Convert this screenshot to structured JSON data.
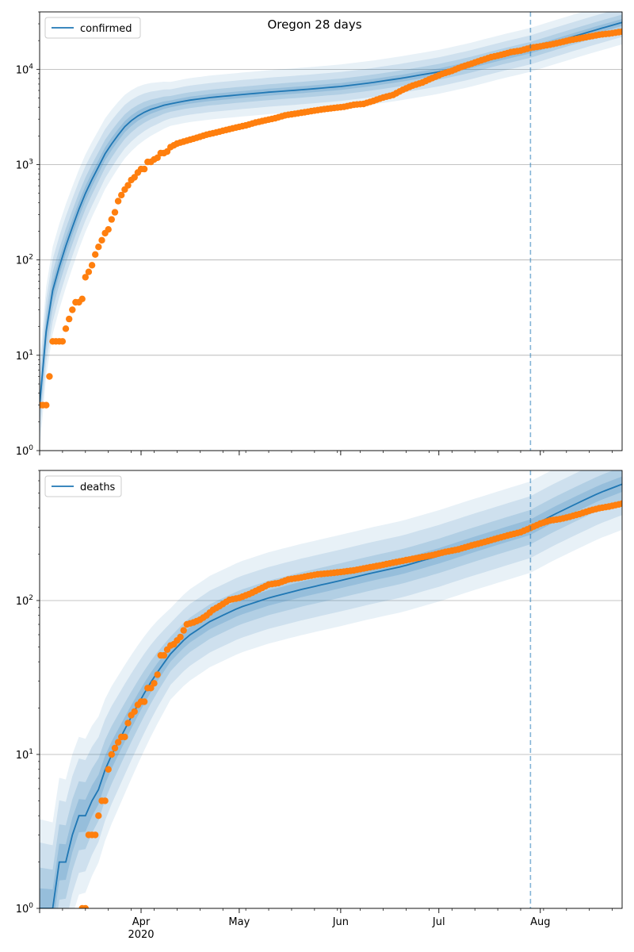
{
  "title": "Oregon 28 days",
  "colors": {
    "model": "#1f77b4",
    "observed": "#ff7f0e",
    "band": "#1f77b4",
    "grid": "#b0b0b0"
  },
  "x_axis": {
    "range": [
      "2020-03-01",
      "2020-08-26"
    ],
    "month_ticks": [
      {
        "date": "2020-04-01",
        "label": "Apr",
        "sublabel": "2020"
      },
      {
        "date": "2020-05-01",
        "label": "May",
        "sublabel": ""
      },
      {
        "date": "2020-06-01",
        "label": "Jun",
        "sublabel": ""
      },
      {
        "date": "2020-07-01",
        "label": "Jul",
        "sublabel": ""
      },
      {
        "date": "2020-08-01",
        "label": "Aug",
        "sublabel": ""
      }
    ],
    "forecast_start": "2020-07-29"
  },
  "chart_data": [
    {
      "type": "line",
      "title": "Oregon 28 days",
      "scale": "log",
      "legend": {
        "label": "confirmed",
        "placement": "top-left"
      },
      "ylim": [
        1,
        40000
      ],
      "y_ticks": [
        {
          "value": 1,
          "base": "10",
          "exp": "0"
        },
        {
          "value": 10,
          "base": "10",
          "exp": "1"
        },
        {
          "value": 100,
          "base": "10",
          "exp": "2"
        },
        {
          "value": 1000,
          "base": "10",
          "exp": "3"
        },
        {
          "value": 10000,
          "base": "10",
          "exp": "4"
        }
      ],
      "grid": true,
      "model": [
        [
          "2020-03-01",
          3
        ],
        [
          "2020-03-02",
          8
        ],
        [
          "2020-03-03",
          18
        ],
        [
          "2020-03-04",
          32
        ],
        [
          "2020-03-05",
          48
        ],
        [
          "2020-03-07",
          85
        ],
        [
          "2020-03-09",
          140
        ],
        [
          "2020-03-11",
          220
        ],
        [
          "2020-03-13",
          340
        ],
        [
          "2020-03-15",
          500
        ],
        [
          "2020-03-17",
          700
        ],
        [
          "2020-03-19",
          950
        ],
        [
          "2020-03-21",
          1300
        ],
        [
          "2020-03-24",
          1850
        ],
        [
          "2020-03-27",
          2500
        ],
        [
          "2020-03-30",
          3100
        ],
        [
          "2020-04-03",
          3700
        ],
        [
          "2020-04-08",
          4200
        ],
        [
          "2020-04-15",
          4700
        ],
        [
          "2020-04-22",
          5050
        ],
        [
          "2020-05-01",
          5400
        ],
        [
          "2020-05-10",
          5750
        ],
        [
          "2020-05-20",
          6100
        ],
        [
          "2020-06-01",
          6600
        ],
        [
          "2020-06-10",
          7200
        ],
        [
          "2020-06-20",
          8100
        ],
        [
          "2020-07-01",
          9400
        ],
        [
          "2020-07-10",
          11000
        ],
        [
          "2020-07-20",
          13500
        ],
        [
          "2020-07-29",
          16000
        ],
        [
          "2020-08-05",
          19000
        ],
        [
          "2020-08-12",
          22500
        ],
        [
          "2020-08-19",
          26500
        ],
        [
          "2020-08-26",
          31000
        ]
      ],
      "observed": [
        [
          "2020-03-01",
          3
        ],
        [
          "2020-03-02",
          3
        ],
        [
          "2020-03-03",
          3
        ],
        [
          "2020-03-04",
          6
        ],
        [
          "2020-03-05",
          14
        ],
        [
          "2020-03-06",
          14
        ],
        [
          "2020-03-07",
          14
        ],
        [
          "2020-03-08",
          14
        ],
        [
          "2020-03-09",
          19
        ],
        [
          "2020-03-10",
          24
        ],
        [
          "2020-03-11",
          30
        ],
        [
          "2020-03-12",
          36
        ],
        [
          "2020-03-13",
          36
        ],
        [
          "2020-03-14",
          39
        ],
        [
          "2020-03-15",
          66
        ],
        [
          "2020-03-16",
          75
        ],
        [
          "2020-03-17",
          88
        ],
        [
          "2020-03-18",
          114
        ],
        [
          "2020-03-19",
          137
        ],
        [
          "2020-03-20",
          161
        ],
        [
          "2020-03-21",
          191
        ],
        [
          "2020-03-22",
          209
        ],
        [
          "2020-03-23",
          266
        ],
        [
          "2020-03-24",
          316
        ],
        [
          "2020-03-25",
          414
        ],
        [
          "2020-03-26",
          479
        ],
        [
          "2020-03-27",
          548
        ],
        [
          "2020-03-28",
          606
        ],
        [
          "2020-03-29",
          690
        ],
        [
          "2020-03-30",
          736
        ],
        [
          "2020-03-31",
          826
        ],
        [
          "2020-04-01",
          899
        ],
        [
          "2020-04-02",
          899
        ],
        [
          "2020-04-03",
          1068
        ],
        [
          "2020-04-04",
          1068
        ],
        [
          "2020-04-05",
          1132
        ],
        [
          "2020-04-06",
          1181
        ],
        [
          "2020-04-07",
          1321
        ],
        [
          "2020-04-08",
          1321
        ],
        [
          "2020-04-09",
          1371
        ],
        [
          "2020-04-10",
          1527
        ],
        [
          "2020-04-12",
          1663
        ],
        [
          "2020-04-15",
          1785
        ],
        [
          "2020-04-18",
          1910
        ],
        [
          "2020-04-21",
          2059
        ],
        [
          "2020-04-24",
          2177
        ],
        [
          "2020-04-27",
          2311
        ],
        [
          "2020-04-30",
          2446
        ],
        [
          "2020-05-03",
          2579
        ],
        [
          "2020-05-06",
          2759
        ],
        [
          "2020-05-09",
          2916
        ],
        [
          "2020-05-12",
          3068
        ],
        [
          "2020-05-15",
          3286
        ],
        [
          "2020-05-18",
          3416
        ],
        [
          "2020-05-21",
          3541
        ],
        [
          "2020-05-24",
          3687
        ],
        [
          "2020-05-27",
          3817
        ],
        [
          "2020-05-30",
          3927
        ],
        [
          "2020-06-02",
          4038
        ],
        [
          "2020-06-05",
          4243
        ],
        [
          "2020-06-08",
          4335
        ],
        [
          "2020-06-11",
          4662
        ],
        [
          "2020-06-14",
          5063
        ],
        [
          "2020-06-17",
          5377
        ],
        [
          "2020-06-20",
          6098
        ],
        [
          "2020-06-23",
          6750
        ],
        [
          "2020-06-26",
          7274
        ],
        [
          "2020-06-29",
          8094
        ],
        [
          "2020-07-02",
          8931
        ],
        [
          "2020-07-05",
          9636
        ],
        [
          "2020-07-08",
          10605
        ],
        [
          "2020-07-11",
          11454
        ],
        [
          "2020-07-14",
          12438
        ],
        [
          "2020-07-17",
          13410
        ],
        [
          "2020-07-20",
          14149
        ],
        [
          "2020-07-23",
          15139
        ],
        [
          "2020-07-26",
          15713
        ],
        [
          "2020-07-29",
          16758
        ],
        [
          "2020-08-01",
          17416
        ],
        [
          "2020-08-04",
          18131
        ],
        [
          "2020-08-07",
          19097
        ],
        [
          "2020-08-10",
          20225
        ],
        [
          "2020-08-13",
          21055
        ],
        [
          "2020-08-16",
          22022
        ],
        [
          "2020-08-19",
          23030
        ],
        [
          "2020-08-22",
          23676
        ],
        [
          "2020-08-26",
          24802
        ]
      ]
    },
    {
      "type": "line",
      "scale": "log",
      "legend": {
        "label": "deaths",
        "placement": "top-left"
      },
      "ylim": [
        1,
        700
      ],
      "y_ticks": [
        {
          "value": 1,
          "base": "10",
          "exp": "0"
        },
        {
          "value": 10,
          "base": "10",
          "exp": "1"
        },
        {
          "value": 100,
          "base": "10",
          "exp": "2"
        }
      ],
      "grid": true,
      "model": [
        [
          "2020-03-01",
          1
        ],
        [
          "2020-03-05",
          1
        ],
        [
          "2020-03-06",
          2
        ],
        [
          "2020-03-09",
          2
        ],
        [
          "2020-03-10",
          3
        ],
        [
          "2020-03-12",
          3
        ],
        [
          "2020-03-13",
          4
        ],
        [
          "2020-03-15",
          4
        ],
        [
          "2020-03-16",
          5
        ],
        [
          "2020-03-18",
          5
        ],
        [
          "2020-03-20",
          7
        ],
        [
          "2020-03-22",
          9
        ],
        [
          "2020-03-25",
          12
        ],
        [
          "2020-03-28",
          16
        ],
        [
          "2020-04-01",
          23
        ],
        [
          "2020-04-05",
          32
        ],
        [
          "2020-04-10",
          45
        ],
        [
          "2020-04-15",
          58
        ],
        [
          "2020-04-22",
          73
        ],
        [
          "2020-05-01",
          90
        ],
        [
          "2020-05-10",
          104
        ],
        [
          "2020-05-20",
          118
        ],
        [
          "2020-06-01",
          135
        ],
        [
          "2020-06-10",
          150
        ],
        [
          "2020-06-20",
          167
        ],
        [
          "2020-07-01",
          195
        ],
        [
          "2020-07-10",
          225
        ],
        [
          "2020-07-20",
          262
        ],
        [
          "2020-07-29",
          300
        ],
        [
          "2020-08-05",
          360
        ],
        [
          "2020-08-12",
          425
        ],
        [
          "2020-08-19",
          500
        ],
        [
          "2020-08-26",
          570
        ]
      ],
      "observed": [
        [
          "2020-03-14",
          1
        ],
        [
          "2020-03-15",
          1
        ],
        [
          "2020-03-16",
          3
        ],
        [
          "2020-03-17",
          3
        ],
        [
          "2020-03-18",
          3
        ],
        [
          "2020-03-19",
          4
        ],
        [
          "2020-03-20",
          5
        ],
        [
          "2020-03-21",
          5
        ],
        [
          "2020-03-22",
          8
        ],
        [
          "2020-03-23",
          10
        ],
        [
          "2020-03-24",
          11
        ],
        [
          "2020-03-25",
          12
        ],
        [
          "2020-03-26",
          13
        ],
        [
          "2020-03-27",
          13
        ],
        [
          "2020-03-28",
          16
        ],
        [
          "2020-03-29",
          18
        ],
        [
          "2020-03-30",
          19
        ],
        [
          "2020-03-31",
          21
        ],
        [
          "2020-04-01",
          22
        ],
        [
          "2020-04-02",
          22
        ],
        [
          "2020-04-03",
          27
        ],
        [
          "2020-04-04",
          27
        ],
        [
          "2020-04-05",
          29
        ],
        [
          "2020-04-06",
          33
        ],
        [
          "2020-04-07",
          44
        ],
        [
          "2020-04-08",
          44
        ],
        [
          "2020-04-09",
          48
        ],
        [
          "2020-04-10",
          51
        ],
        [
          "2020-04-11",
          52
        ],
        [
          "2020-04-12",
          55
        ],
        [
          "2020-04-13",
          58
        ],
        [
          "2020-04-14",
          64
        ],
        [
          "2020-04-15",
          70
        ],
        [
          "2020-04-17",
          72
        ],
        [
          "2020-04-19",
          75
        ],
        [
          "2020-04-21",
          80
        ],
        [
          "2020-04-23",
          87
        ],
        [
          "2020-04-25",
          92
        ],
        [
          "2020-04-28",
          101
        ],
        [
          "2020-05-01",
          104
        ],
        [
          "2020-05-04",
          110
        ],
        [
          "2020-05-07",
          118
        ],
        [
          "2020-05-10",
          127
        ],
        [
          "2020-05-13",
          130
        ],
        [
          "2020-05-16",
          137
        ],
        [
          "2020-05-19",
          140
        ],
        [
          "2020-05-22",
          144
        ],
        [
          "2020-05-25",
          148
        ],
        [
          "2020-05-28",
          150
        ],
        [
          "2020-06-01",
          153
        ],
        [
          "2020-06-05",
          157
        ],
        [
          "2020-06-09",
          163
        ],
        [
          "2020-06-13",
          169
        ],
        [
          "2020-06-17",
          176
        ],
        [
          "2020-06-21",
          183
        ],
        [
          "2020-06-25",
          190
        ],
        [
          "2020-06-29",
          197
        ],
        [
          "2020-07-03",
          207
        ],
        [
          "2020-07-07",
          215
        ],
        [
          "2020-07-11",
          228
        ],
        [
          "2020-07-15",
          240
        ],
        [
          "2020-07-19",
          254
        ],
        [
          "2020-07-23",
          268
        ],
        [
          "2020-07-26",
          278
        ],
        [
          "2020-07-29",
          296
        ],
        [
          "2020-08-01",
          316
        ],
        [
          "2020-08-04",
          331
        ],
        [
          "2020-08-07",
          338
        ],
        [
          "2020-08-10",
          350
        ],
        [
          "2020-08-13",
          365
        ],
        [
          "2020-08-16",
          383
        ],
        [
          "2020-08-19",
          398
        ],
        [
          "2020-08-22",
          408
        ],
        [
          "2020-08-26",
          426
        ]
      ]
    }
  ]
}
